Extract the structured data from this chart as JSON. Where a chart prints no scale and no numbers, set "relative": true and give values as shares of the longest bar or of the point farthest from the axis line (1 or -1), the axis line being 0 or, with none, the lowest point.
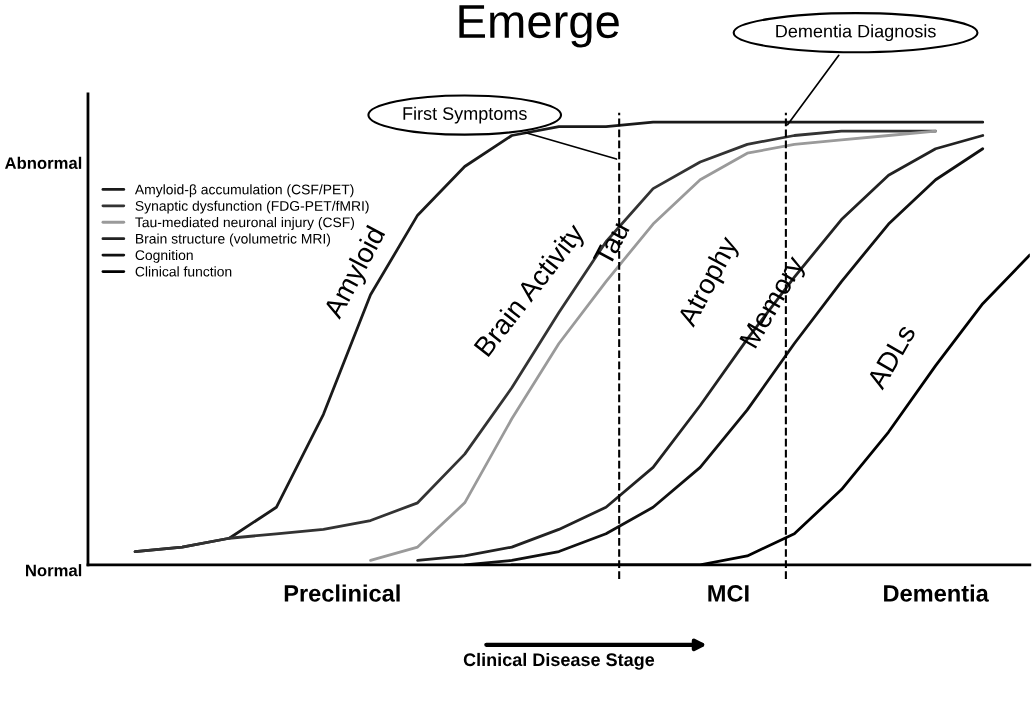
{
  "chart_data": {
    "type": "line",
    "title": "Emerge",
    "relative": true,
    "categories": [
      null,
      null,
      null,
      null,
      null,
      null,
      null,
      null,
      null,
      null,
      null,
      null,
      null,
      null,
      null,
      null,
      null,
      null,
      null,
      null,
      null
    ],
    "grid": false,
    "legend": "top left",
    "marker": "none",
    "line_style": "solid",
    "series": [
      {
        "name": "Amyloid-β accumulation (CSF/PET)",
        "color": "#1a1a1a",
        "values": [
          null,
          0.03,
          0.04,
          0.06,
          0.13,
          0.34,
          0.61,
          0.79,
          0.9,
          0.97,
          0.99,
          0.99,
          1,
          1,
          1,
          1,
          1,
          1,
          1,
          1,
          null
        ]
      },
      {
        "name": "Synaptic dysfunction (FDG-PET/fMRI)",
        "color": "#333333",
        "values": [
          null,
          0.03,
          0.04,
          0.06,
          0.07,
          0.08,
          0.1,
          0.14,
          0.25,
          0.4,
          0.57,
          0.73,
          0.85,
          0.91,
          0.95,
          0.97,
          0.98,
          0.98,
          0.98,
          null,
          null
        ]
      },
      {
        "name": "Tau-mediated neuronal injury (CSF)",
        "color": "#9a9a9a",
        "values": [
          null,
          null,
          null,
          null,
          null,
          null,
          0.01,
          0.04,
          0.14,
          0.33,
          0.5,
          0.64,
          0.77,
          0.87,
          0.93,
          0.95,
          0.96,
          0.97,
          0.98,
          null,
          null
        ]
      },
      {
        "name": "Brain structure (volumetric MRI)",
        "color": "#222222",
        "values": [
          null,
          null,
          null,
          null,
          null,
          null,
          null,
          0.01,
          0.02,
          0.04,
          0.08,
          0.13,
          0.22,
          0.36,
          0.51,
          0.65,
          0.78,
          0.88,
          0.94,
          0.97,
          null
        ]
      },
      {
        "name": "Cognition",
        "color": "#111111",
        "values": [
          null,
          null,
          null,
          null,
          null,
          null,
          null,
          null,
          0,
          0.01,
          0.03,
          0.07,
          0.13,
          0.22,
          0.35,
          0.5,
          0.64,
          0.77,
          0.87,
          0.94,
          null
        ]
      },
      {
        "name": "Clinical function",
        "color": "#000000",
        "values": [
          null,
          null,
          null,
          null,
          null,
          null,
          null,
          null,
          null,
          0,
          0,
          0,
          0,
          0,
          0.02,
          0.07,
          0.17,
          0.3,
          0.45,
          0.59,
          0.7
        ]
      }
    ],
    "annotations": [
      "Amyloid",
      "Brain Activity",
      "Tau",
      "Atrophy",
      "Memory",
      "ADLs",
      "Abnormal",
      "Normal",
      "Preclinical",
      "MCI",
      "Dementia",
      "First Symptoms",
      "Dementia Diagnosis",
      "Clinical Disease Stage"
    ]
  }
}
